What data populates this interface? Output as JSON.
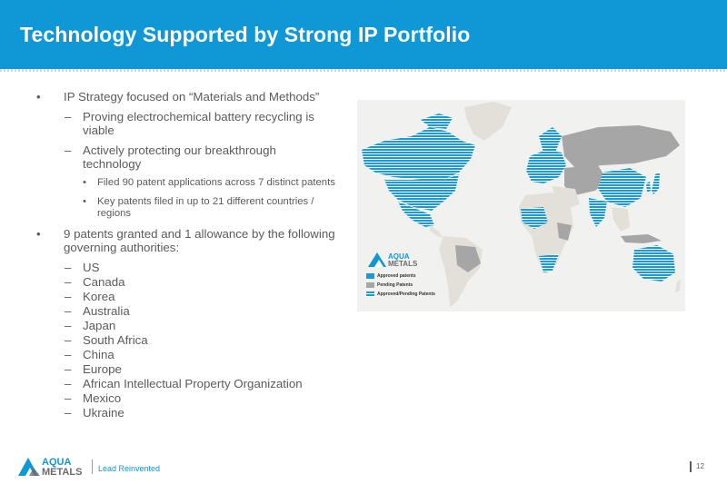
{
  "header": {
    "title": "Technology Supported by Strong IP Portfolio"
  },
  "bullets": {
    "marker_l1": "•",
    "marker_l2": "–",
    "marker_l3": "•",
    "ip_strategy": "IP Strategy focused on “Materials and Methods”",
    "proving": "Proving electrochemical battery recycling is viable",
    "protecting": "Actively protecting our breakthrough technology",
    "filed": "Filed 90 patent applications across 7 distinct patents",
    "key_patents": "Key patents filed in up to 21 different countries / regions",
    "granted": "9 patents granted and 1 allowance by the following governing authorities:",
    "authorities": [
      "US",
      "Canada",
      "Korea",
      "Australia",
      "Japan",
      "South Africa",
      "China",
      "Europe",
      "African Intellectual Property Organization",
      "Mexico",
      "Ukraine"
    ]
  },
  "map_legend": {
    "logo_top": "AQUA",
    "logo_bottom": "METALS",
    "items": [
      {
        "label": "Approved patents",
        "color": "#1a9ad6"
      },
      {
        "label": "Pending Patents",
        "color": "#a6a6a6"
      },
      {
        "label": "Approved/Pending Patents",
        "color": "#1a9ad6"
      }
    ]
  },
  "footer": {
    "logo_top": "AQUA",
    "logo_bottom": "METALS",
    "tagline": "Lead Reinvented",
    "page_number": "12"
  },
  "colors": {
    "brand_blue": "#0f97d6",
    "pending_gray": "#a6a6a6",
    "land_gray": "#e3e0d9"
  }
}
